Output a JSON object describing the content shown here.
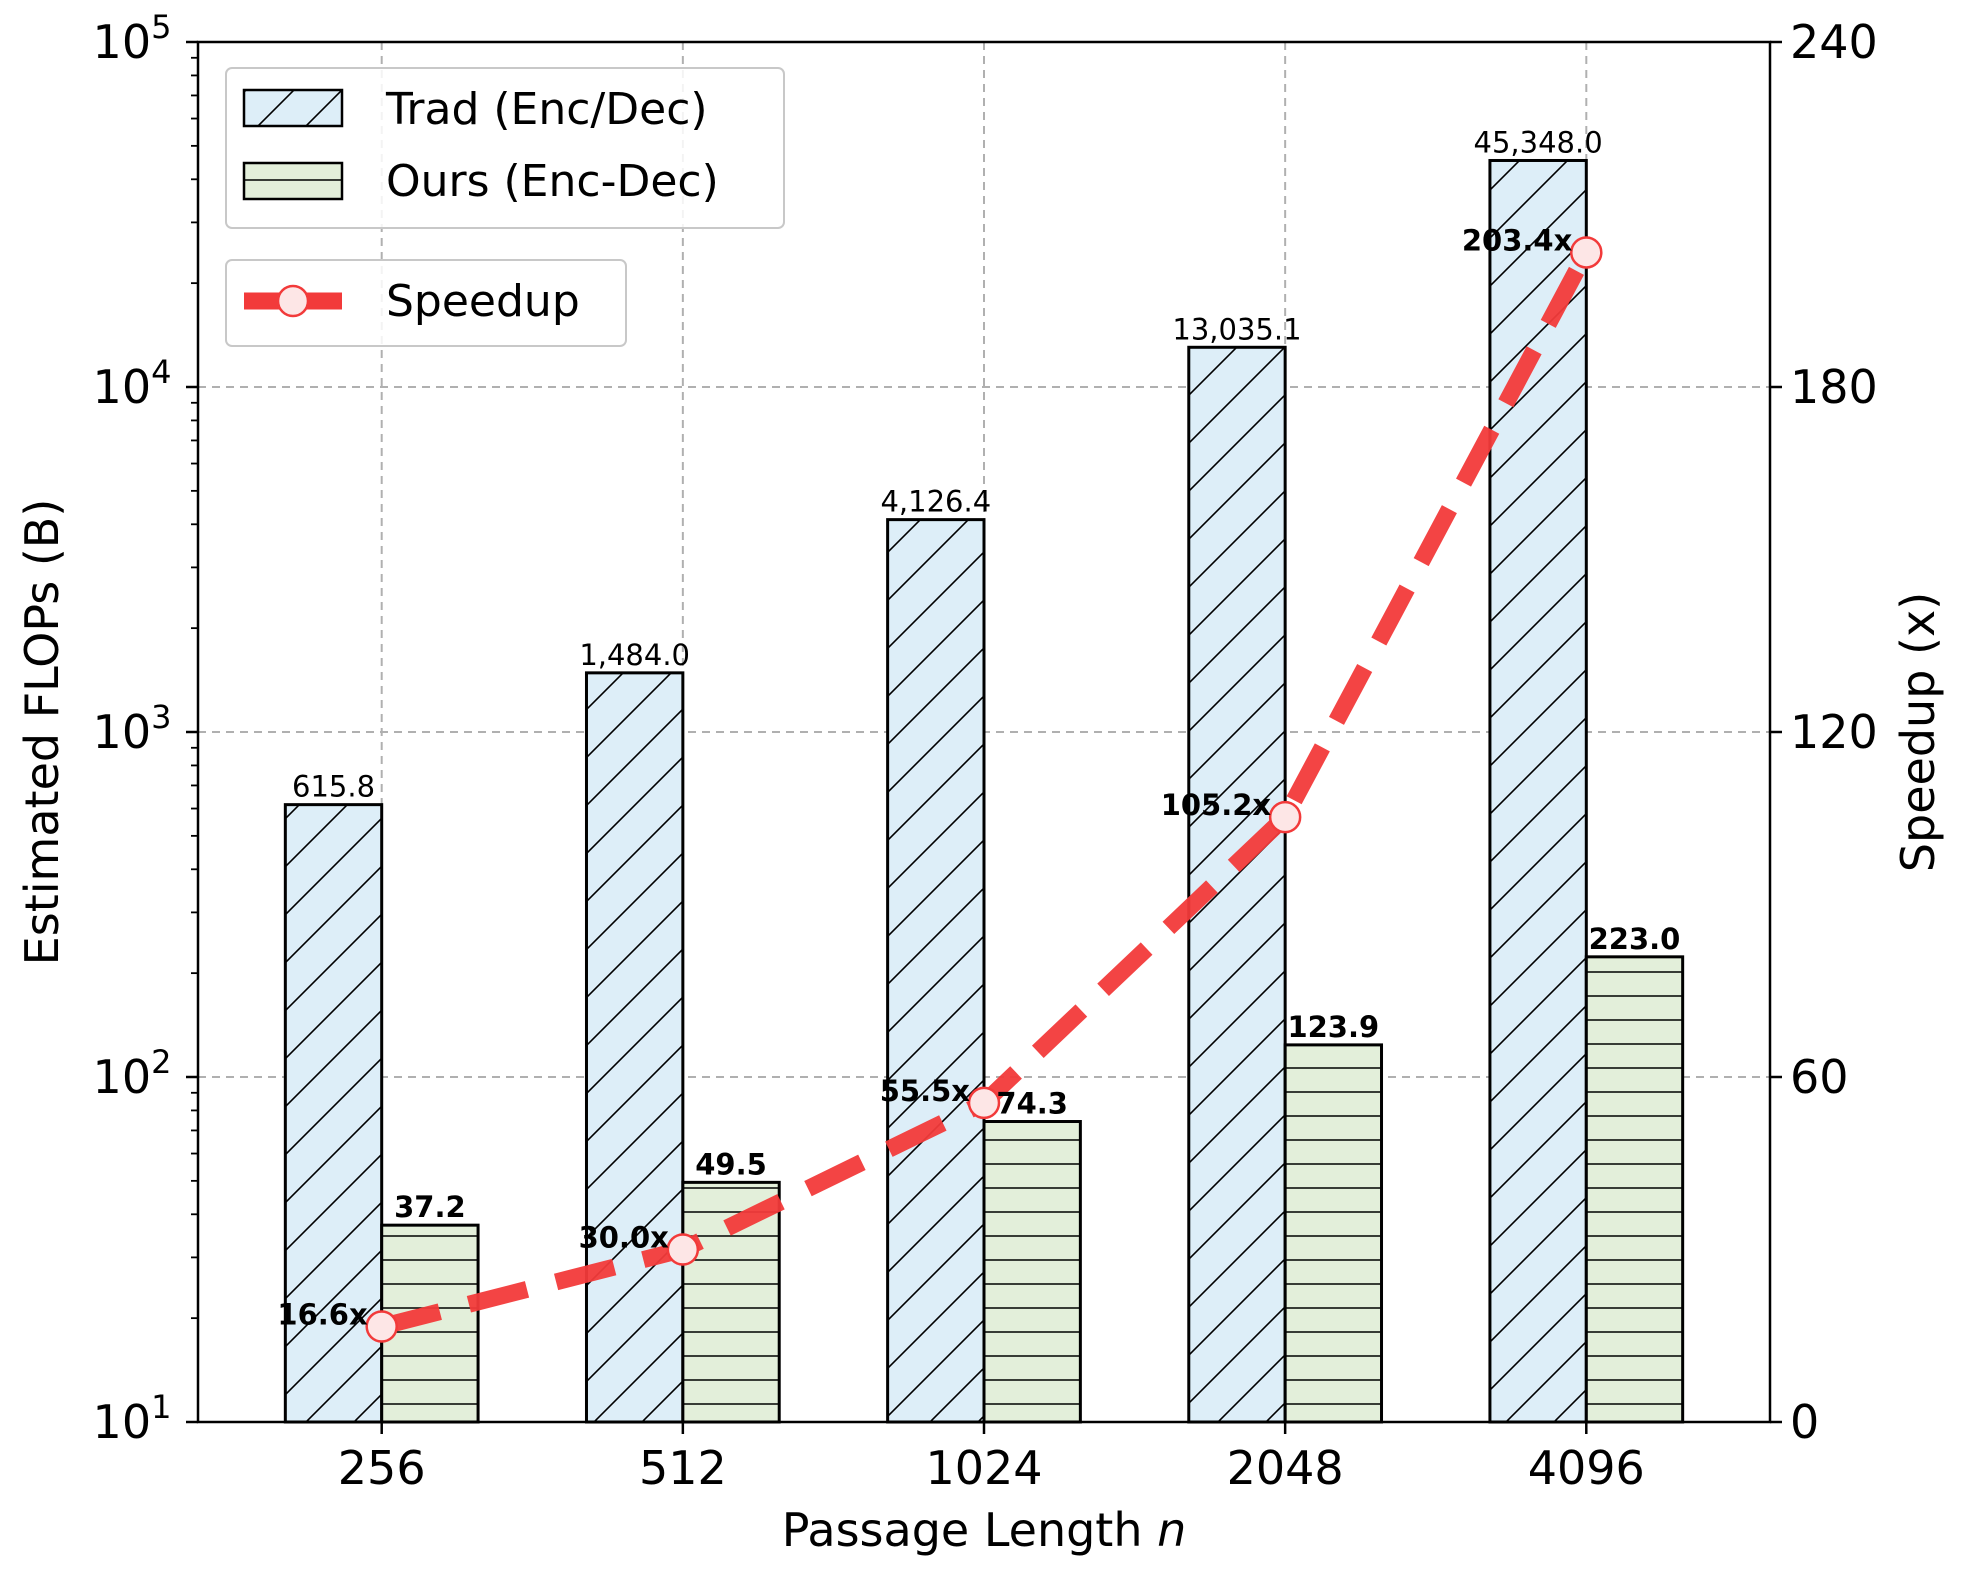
{
  "chart_data": {
    "type": "bar",
    "xlabel": "Passage Length",
    "xlabel_var": "n",
    "ylabel": "Estimated FLOPs (B)",
    "y2label": "Speedup (x)",
    "y_scale": "log",
    "ylim": [
      10,
      100000
    ],
    "y_tick_base": "10",
    "y_tick_exponents": [
      "1",
      "2",
      "3",
      "4",
      "5"
    ],
    "y2lim": [
      0,
      240
    ],
    "y2_ticks": [
      0,
      60,
      120,
      180,
      240
    ],
    "grid": true,
    "categories": [
      "256",
      "512",
      "1024",
      "2048",
      "4096"
    ],
    "series": [
      {
        "name": "Trad (Enc/Dec)",
        "type": "bar",
        "axis": "left",
        "values": [
          615.8,
          1484.0,
          4126.4,
          13035.1,
          45348.0
        ],
        "labels": [
          "615.8",
          "1,484.0",
          "4,126.4",
          "13,035.1",
          "45,348.0"
        ],
        "color": "#ddeef8",
        "hatch": "diagonal"
      },
      {
        "name": "Ours (Enc-Dec)",
        "type": "bar",
        "axis": "left",
        "values": [
          37.2,
          49.5,
          74.3,
          123.9,
          223.0
        ],
        "labels": [
          "37.2",
          "49.5",
          "74.3",
          "123.9",
          "223.0"
        ],
        "color": "#e3efda",
        "hatch": "horizontal"
      },
      {
        "name": "Speedup",
        "type": "line",
        "axis": "right",
        "values": [
          16.6,
          30.0,
          55.5,
          105.2,
          203.4
        ],
        "labels": [
          "16.6x",
          "30.0x",
          "55.5x",
          "105.2x",
          "203.4x"
        ],
        "color": "#f23a3a",
        "style": "dashed",
        "marker": "circle"
      }
    ],
    "legend_position": "top-left"
  }
}
